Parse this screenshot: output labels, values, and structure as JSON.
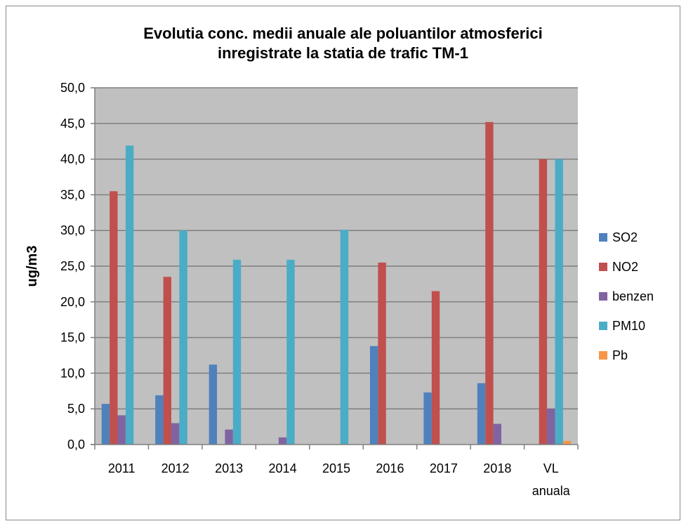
{
  "chart_data": {
    "type": "bar",
    "title_lines": [
      "Evolutia conc. medii anuale ale poluantilor atmosferici",
      "inregistrate la statia de trafic TM-1"
    ],
    "xlabel": "",
    "ylabel": "ug/m3",
    "ylim": [
      0,
      50
    ],
    "ytick_step": 5,
    "ytick_labels": [
      "0,0",
      "5,0",
      "10,0",
      "15,0",
      "20,0",
      "25,0",
      "30,0",
      "35,0",
      "40,0",
      "45,0",
      "50,0"
    ],
    "categories": [
      "2011",
      "2012",
      "2013",
      "2014",
      "2015",
      "2016",
      "2017",
      "2018",
      "VL anuala"
    ],
    "grid": true,
    "legend_position": "right",
    "plot_background": "#c0c0c0",
    "series": [
      {
        "name": "SO2",
        "color": "#4f81bd",
        "values": [
          5.7,
          6.9,
          11.2,
          0,
          0,
          13.8,
          7.3,
          8.6,
          0
        ]
      },
      {
        "name": "NO2",
        "color": "#c0504d",
        "values": [
          35.5,
          23.5,
          0,
          0,
          0,
          25.5,
          21.5,
          45.2,
          40.0
        ]
      },
      {
        "name": "benzen",
        "color": "#8064a2",
        "values": [
          4.1,
          3.0,
          2.1,
          1.0,
          0,
          0,
          0,
          2.9,
          5.0
        ]
      },
      {
        "name": "PM10",
        "color": "#4bacc6",
        "values": [
          41.9,
          30.0,
          25.9,
          25.9,
          30.1,
          0,
          0,
          0,
          40.0
        ]
      },
      {
        "name": "Pb",
        "color": "#f79646",
        "values": [
          0,
          0,
          0,
          0,
          0,
          0,
          0,
          0,
          0.5
        ]
      }
    ]
  }
}
